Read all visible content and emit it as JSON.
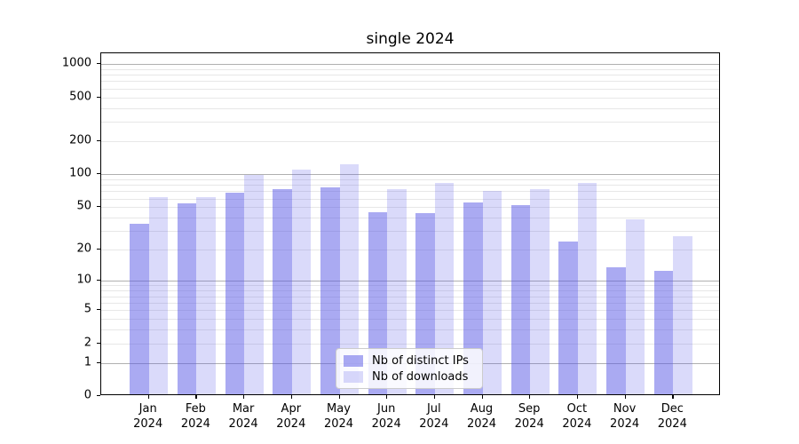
{
  "chart_data": {
    "type": "bar",
    "title": "single 2024",
    "categories": [
      "Jan 2024",
      "Feb 2024",
      "Mar 2024",
      "Apr 2024",
      "May 2024",
      "Jun 2024",
      "Jul 2024",
      "Aug 2024",
      "Sep 2024",
      "Oct 2024",
      "Nov 2024",
      "Dec 2024"
    ],
    "series": [
      {
        "name": "Nb of distinct IPs",
        "color": "rgba(85,85,230,0.50)",
        "values": [
          34,
          52,
          65,
          70,
          73,
          43,
          42,
          53,
          50,
          23,
          13,
          12
        ]
      },
      {
        "name": "Nb of downloads",
        "color": "rgba(85,85,230,0.22)",
        "values": [
          60,
          60,
          95,
          106,
          118,
          70,
          80,
          68,
          70,
          80,
          37,
          26
        ]
      }
    ],
    "xlabel": "",
    "ylabel": "",
    "yscale": "log10(1+v)",
    "y_ticks": [
      0,
      1,
      2,
      5,
      10,
      20,
      50,
      100,
      200,
      500,
      1000
    ],
    "ylim": [
      0,
      1250
    ],
    "grid": "on",
    "legend_position": "lower center",
    "colors": {
      "bar_base": "#5555e6",
      "major_grid": "#b0b0b0",
      "minor_grid": "#e7e7e7",
      "spine": "#000000",
      "text": "#000000",
      "legend_border": "#cccccc",
      "legend_bg": "rgba(255,255,255,0.85)"
    }
  }
}
